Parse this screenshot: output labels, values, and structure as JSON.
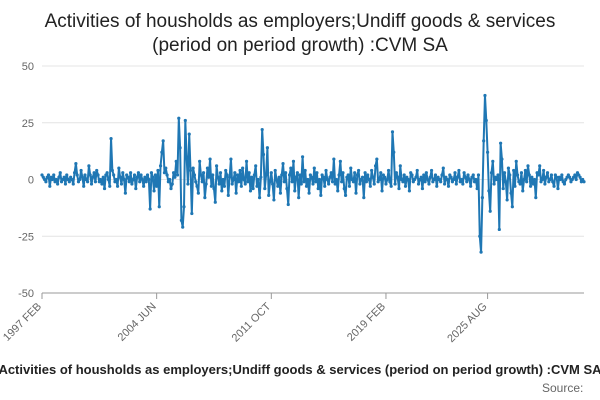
{
  "chart_data": {
    "type": "line",
    "title_lines": [
      "Activities of housholds as employers;Undiff goods & services",
      "(period on period growth) :CVM SA"
    ],
    "caption": "Activities of housholds as employers;Undiff goods & services (period on period growth) :CVM SA",
    "source_label": "Source:",
    "xlabel": "",
    "ylabel": "",
    "ylim": [
      -50,
      50
    ],
    "y_ticks": [
      50,
      25,
      0,
      -25,
      -50
    ],
    "x_tick_labels": [
      "1997 FEB",
      "2004 JUN",
      "2011 OCT",
      "2019 FEB",
      "2025 AUG"
    ],
    "x_tick_positions": [
      0,
      88,
      176,
      264,
      342
    ],
    "grid": true,
    "legend": "none",
    "line_color": "#1f77b4",
    "series": [
      {
        "values": [
          2,
          1,
          0,
          -1,
          1,
          2,
          -3,
          1,
          0,
          2,
          -1,
          0,
          -2,
          1,
          3,
          -1,
          0,
          1,
          -2,
          2,
          0,
          -1,
          1,
          0,
          -2,
          3,
          7,
          2,
          -1,
          0,
          4,
          1,
          -3,
          2,
          0,
          -1,
          6,
          2,
          -2,
          1,
          3,
          -1,
          4,
          2,
          -1,
          0,
          -2,
          1,
          -4,
          2,
          3,
          0,
          -3,
          18,
          4,
          2,
          -1,
          0,
          -3,
          5,
          1,
          -2,
          3,
          0,
          -6,
          2,
          1,
          -1,
          3,
          -2,
          0,
          2,
          -4,
          1,
          3,
          -1,
          2,
          0,
          -3,
          1,
          -1,
          2,
          0,
          -13,
          3,
          1,
          -5,
          2,
          -3,
          4,
          -12,
          6,
          12,
          17,
          3,
          5,
          2,
          -1,
          0,
          -4,
          -2,
          3,
          1,
          8,
          2,
          27,
          14,
          -18,
          -21,
          -12,
          26,
          10,
          -2,
          20,
          4,
          -15,
          5,
          2,
          -1,
          -3,
          -6,
          8,
          2,
          -1,
          3,
          -8,
          -2,
          5,
          1,
          9,
          -3,
          2,
          -4,
          -10,
          6,
          1,
          -2,
          3,
          -5,
          0,
          -3,
          4,
          2,
          -7,
          1,
          9,
          -2,
          0,
          3,
          -6,
          2,
          -1,
          4,
          -3,
          5,
          0,
          -2,
          8,
          -1,
          3,
          -5,
          1,
          -4,
          2,
          6,
          -3,
          0,
          -8,
          1,
          22,
          11,
          -4,
          2,
          14,
          -7,
          -1,
          3,
          -2,
          -9,
          4,
          0,
          -3,
          1,
          -6,
          2,
          7,
          -1,
          3,
          -4,
          -11,
          2,
          5,
          -1,
          8,
          -5,
          1,
          3,
          -8,
          2,
          -2,
          10,
          -1,
          4,
          -3,
          0,
          -6,
          2,
          1,
          -2,
          5,
          -1,
          3,
          -4,
          0,
          -7,
          2,
          1,
          -3,
          4,
          0,
          -2,
          1,
          3,
          -1,
          9,
          -2,
          0,
          -5,
          2,
          8,
          -1,
          3,
          -4,
          -7,
          1,
          2,
          -3,
          5,
          0,
          -1,
          3,
          -6,
          2,
          4,
          -2,
          0,
          1,
          -8,
          3,
          -1,
          2,
          0,
          -3,
          4,
          1,
          -2,
          6,
          9,
          -1,
          0,
          3,
          -5,
          2,
          1,
          -2,
          0,
          4,
          -1,
          -3,
          21,
          12,
          -2,
          3,
          1,
          -4,
          6,
          0,
          -1,
          2,
          -3,
          1,
          0,
          -5,
          3,
          2,
          -1,
          0,
          1,
          4,
          -2,
          0,
          1,
          -4,
          2,
          -1,
          3,
          0,
          -2,
          1,
          4,
          -1,
          0,
          2,
          -3,
          1,
          0,
          -1,
          2,
          5,
          -2,
          1,
          0,
          -3,
          2,
          1,
          -1,
          0,
          3,
          -2,
          1,
          4,
          -1,
          0,
          -2,
          3,
          1,
          -1,
          2,
          0,
          -3,
          1,
          2,
          -1,
          0,
          -4,
          2,
          -25,
          -32,
          -8,
          17,
          37,
          26,
          12,
          -5,
          -14,
          3,
          8,
          -2,
          1,
          0,
          2,
          -22,
          16,
          9,
          -4,
          3,
          -1,
          -9,
          5,
          2,
          -6,
          -12,
          4,
          -3,
          8,
          2,
          -1,
          -2,
          3,
          -5,
          0,
          4,
          -1,
          6,
          2,
          -3,
          1,
          -2,
          0,
          -8,
          3,
          2,
          6,
          -1,
          0,
          4,
          -2,
          1,
          3,
          -1,
          0,
          2,
          -1,
          -3,
          2,
          1,
          -4,
          1,
          0,
          2,
          -1,
          -2,
          0,
          1,
          2,
          1,
          -1,
          0,
          1,
          2,
          0,
          3,
          2,
          1,
          -1,
          0,
          -1
        ]
      }
    ]
  }
}
